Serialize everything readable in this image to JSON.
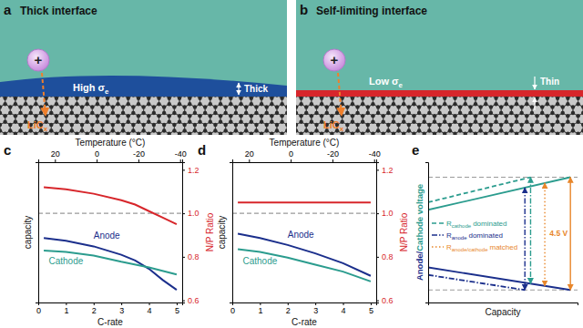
{
  "diagrams": [
    {
      "letter": "a",
      "title": "Thick interface",
      "ion": "+",
      "layer": "thick",
      "layer_color": "#1e4f9c",
      "layer_label": {
        "text": "High σ",
        "subscript": "e"
      },
      "thickness_label": "Thick",
      "product": {
        "text": "LiC",
        "subscript": "x"
      }
    },
    {
      "letter": "b",
      "title": "Self-limiting interface",
      "ion": "+",
      "layer": "thin",
      "layer_color": "#d7262b",
      "layer_label": {
        "text": "Low σ",
        "subscript": "e"
      },
      "thickness_label": "Thin",
      "product": {
        "text": "LiC",
        "subscript": "x"
      }
    }
  ],
  "chart_data": [
    {
      "letter": "c",
      "type": "line",
      "xlabel": "C-rate",
      "x2label": "Temperature (°C)",
      "ylabel": "capacity",
      "y2label": "N/P Ratio",
      "xlim": [
        0,
        5.2
      ],
      "xticks": [
        0,
        1,
        2,
        3,
        4,
        5
      ],
      "x2lim": [
        28,
        -41
      ],
      "x2ticks": [
        20,
        0,
        -20,
        -40
      ],
      "ylim": [
        0,
        1
      ],
      "yticks": [],
      "y2lim": [
        0.59,
        1.235
      ],
      "y2ticks": [
        0.6,
        0.8,
        {
          "value": 1,
          "label": "1.0"
        },
        1.2
      ],
      "reference_lines": [
        {
          "value": 1,
          "axis": "y2",
          "line_style": "dashed"
        }
      ],
      "series": [
        {
          "name": "Anode",
          "color": "#1b2f8c",
          "x": [
            0.2,
            1,
            2,
            3,
            3.5,
            4,
            4.5,
            5
          ],
          "values": [
            0.46,
            0.44,
            0.4,
            0.34,
            0.3,
            0.24,
            0.16,
            0.09
          ]
        },
        {
          "name": "Cathode",
          "color": "#2b9c8e",
          "x": [
            0.2,
            1,
            2,
            3,
            4,
            5
          ],
          "values": [
            0.37,
            0.36,
            0.335,
            0.29,
            0.25,
            0.2
          ]
        },
        {
          "color": "#d7262b",
          "axis": "y2",
          "x": [
            0.2,
            1,
            2,
            3,
            3.5,
            4,
            4.5,
            5
          ],
          "values": [
            1.12,
            1.11,
            1.09,
            1.06,
            1.04,
            1.01,
            0.98,
            0.95
          ]
        }
      ]
    },
    {
      "letter": "d",
      "type": "line",
      "xlabel": "C-rate",
      "x2label": "Temperature (°C)",
      "ylabel": "capacity",
      "y2label": "N/P Ratio",
      "xlim": [
        0,
        5.2
      ],
      "xticks": [
        0,
        1,
        2,
        3,
        4,
        5
      ],
      "x2lim": [
        28,
        -41
      ],
      "x2ticks": [
        20,
        0,
        -20,
        -40
      ],
      "ylim": [
        0,
        1
      ],
      "yticks": [],
      "y2lim": [
        0.59,
        1.235
      ],
      "y2ticks": [
        0.6,
        0.8,
        {
          "value": 1,
          "label": "1.0"
        },
        1.2
      ],
      "reference_lines": [
        {
          "value": 1,
          "axis": "y2",
          "line_style": "dashed"
        }
      ],
      "series": [
        {
          "name": "Anode",
          "color": "#1b2f8c",
          "x": [
            0.2,
            1,
            2,
            3,
            4,
            5
          ],
          "values": [
            0.49,
            0.46,
            0.41,
            0.35,
            0.28,
            0.19
          ]
        },
        {
          "name": "Cathode",
          "color": "#2b9c8e",
          "x": [
            0.2,
            1,
            2,
            3,
            4,
            5
          ],
          "values": [
            0.38,
            0.36,
            0.32,
            0.27,
            0.22,
            0.15
          ]
        },
        {
          "color": "#d7262b",
          "axis": "y2",
          "x": [
            0.2,
            5
          ],
          "values": [
            1.05,
            1.05
          ]
        }
      ]
    },
    {
      "letter": "e",
      "type": "line",
      "xlabel": "Capacity",
      "ylabel_parts": [
        {
          "text": "Anode/",
          "color": "#1b2f8c"
        },
        {
          "text": "Cathode voltage",
          "color": "#2b9c8e"
        }
      ],
      "xlim": [
        0,
        1.05
      ],
      "ylim": [
        0,
        5.6
      ],
      "xticks": [],
      "yticks": [],
      "tick_labels": false,
      "legend": "left",
      "reference_lines": [
        {
          "value": 5,
          "line_style": "dashed"
        },
        {
          "value": 0.5,
          "line_style": "dashed"
        }
      ],
      "series": [
        {
          "color": "#2b9c8e",
          "line_style": "solid",
          "x": [
            0,
            1
          ],
          "values": [
            3.7,
            5
          ]
        },
        {
          "color": "#2b9c8e",
          "line_style": "dashed",
          "x": [
            0,
            0.72
          ],
          "values": [
            4,
            5
          ]
        },
        {
          "color": "#1b2f8c",
          "line_style": "solid",
          "x": [
            0,
            1
          ],
          "values": [
            1.4,
            0.5
          ]
        },
        {
          "color": "#1b2f8c",
          "line_style": "dashdot",
          "x": [
            0,
            0.68
          ],
          "values": [
            1.1,
            0.5
          ]
        },
        {
          "type": "arrow",
          "color": "#2b9c8e",
          "line_style": "dashdot",
          "x": [
            0.72,
            0.72
          ],
          "values": [
            5,
            0.75
          ]
        },
        {
          "type": "arrow",
          "color": "#1b2f8c",
          "line_style": "dashdot",
          "x": [
            0.68,
            0.68
          ],
          "values": [
            4.58,
            0.5
          ]
        },
        {
          "type": "arrow",
          "color": "#e8862a",
          "line_style": "dotted",
          "x": [
            0.82,
            0.82
          ],
          "values": [
            4.77,
            0.66
          ]
        },
        {
          "type": "arrow",
          "color": "#e8862a",
          "line_style": "solid",
          "x": [
            1,
            1
          ],
          "values": [
            5,
            0.5
          ]
        }
      ],
      "legend_entries": [
        {
          "symbol": "R",
          "subscript": "cathode",
          "text": "dominated",
          "color": "#2b9c8e",
          "line_style": "dashed"
        },
        {
          "symbol": "R",
          "subscript": "anode",
          "text": "dominated",
          "color": "#1b2f8c",
          "line_style": "dashdot"
        },
        {
          "symbol": "R",
          "subscript": "anode/cathode",
          "text": "matched",
          "color": "#e8862a",
          "line_style": "dotted"
        }
      ],
      "annotations": [
        {
          "text": "4.5 V",
          "color": "#e8862a"
        }
      ]
    }
  ]
}
